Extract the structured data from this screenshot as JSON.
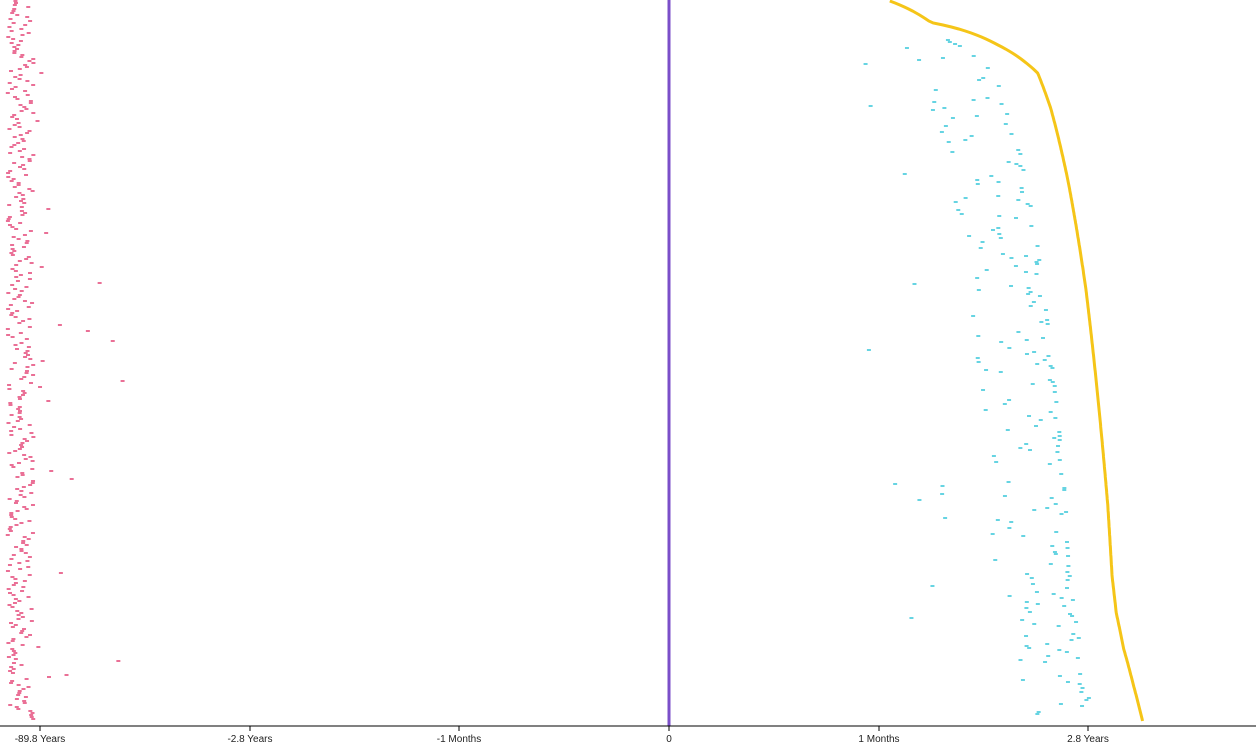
{
  "colors": {
    "before": "#e0336a",
    "after": "#25c1d6",
    "curve": "#f5c518",
    "zero_line": "#7b4fc9",
    "axis": "#000000"
  },
  "chart_data": {
    "type": "scatter",
    "title": "",
    "xlabel": "",
    "ylabel": "",
    "x_scale": "symmetric-log",
    "x_ticks": [
      {
        "value": -2832000000,
        "label": "-89.8 Years"
      },
      {
        "value": -88300000,
        "label": "-2.8 Years"
      },
      {
        "value": -2630000,
        "label": "-1 Months"
      },
      {
        "value": 0,
        "label": "0"
      },
      {
        "value": 2630000,
        "label": "1 Months"
      },
      {
        "value": 88300000,
        "label": "2.8 Years"
      }
    ],
    "y_scale": "rank (one row per record)",
    "grid": false,
    "legend": "none",
    "series_before": {
      "description_color": "before",
      "x_range_years": [
        -200,
        -12
      ],
      "mode": "dashes"
    },
    "series_after": {
      "description_color": "after",
      "x_range_years": [
        0.1,
        5
      ],
      "mode": "dashes"
    },
    "series_curve": {
      "description_color": "curve",
      "mode": "line",
      "points_rank_vs_years": [
        [
          0,
          0.1
        ],
        [
          0.03,
          0.2
        ],
        [
          0.06,
          0.6
        ],
        [
          0.08,
          0.9
        ],
        [
          0.1,
          1.2
        ],
        [
          0.15,
          1.5
        ],
        [
          0.25,
          2.0
        ],
        [
          0.4,
          2.7
        ],
        [
          0.55,
          3.3
        ],
        [
          0.7,
          3.9
        ],
        [
          0.8,
          4.2
        ],
        [
          0.85,
          4.5
        ],
        [
          0.9,
          5.1
        ],
        [
          0.95,
          6.0
        ],
        [
          1.0,
          7.0
        ]
      ]
    }
  }
}
